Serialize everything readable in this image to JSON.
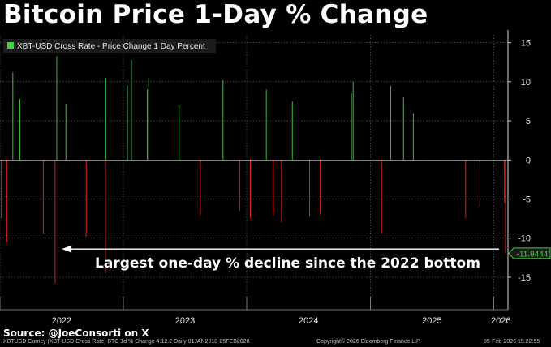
{
  "header": {
    "title": "Bitcoin Price 1-Day % Change"
  },
  "chart_data": {
    "type": "bar",
    "legend": "XBT-USD Cross Rate - Price Change 1 Day Percent",
    "legend_position": "top-left",
    "ylim": [
      -17.5,
      16
    ],
    "yticks": [
      15,
      10,
      5,
      0,
      -5,
      -10,
      -15
    ],
    "x_range": [
      "2022-01-01",
      "2026-02-05"
    ],
    "x_ticks": [
      {
        "label": "2022",
        "date": "2022-01-01"
      },
      {
        "label": "2023",
        "date": "2023-01-01"
      },
      {
        "label": "2024",
        "date": "2024-01-01"
      },
      {
        "label": "2025",
        "date": "2025-01-01"
      },
      {
        "label": "2026",
        "date": "2026-01-01"
      }
    ],
    "positive_color": "#3fd23f",
    "negative_color": "#ff1f1f",
    "grid": true,
    "last_value_label": "-11.9444",
    "last_value": -11.9444,
    "annotation": "Largest one-day % decline since the 2022 bottom",
    "series": [
      {
        "values": [
          {
            "date": "2022-01-05",
            "value": -7.5
          },
          {
            "date": "2022-01-21",
            "value": -10.5
          },
          {
            "date": "2022-02-08",
            "value": 11.2
          },
          {
            "date": "2022-03-01",
            "value": 7.8
          },
          {
            "date": "2022-05-09",
            "value": -9.5
          },
          {
            "date": "2022-06-13",
            "value": -15.8
          },
          {
            "date": "2022-06-18",
            "value": 13.3
          },
          {
            "date": "2022-07-15",
            "value": 7.2
          },
          {
            "date": "2022-09-13",
            "value": -9.8
          },
          {
            "date": "2022-11-09",
            "value": -14.5
          },
          {
            "date": "2022-11-10",
            "value": 10.5
          },
          {
            "date": "2023-01-13",
            "value": 9.5
          },
          {
            "date": "2023-01-25",
            "value": 12.8
          },
          {
            "date": "2023-03-13",
            "value": 9.0
          },
          {
            "date": "2023-03-17",
            "value": 10.5
          },
          {
            "date": "2023-06-15",
            "value": 7.0
          },
          {
            "date": "2023-08-17",
            "value": -7.0
          },
          {
            "date": "2023-10-23",
            "value": 10.2
          },
          {
            "date": "2023-12-11",
            "value": -6.5
          },
          {
            "date": "2024-01-12",
            "value": -7.5
          },
          {
            "date": "2024-02-28",
            "value": 9.0
          },
          {
            "date": "2024-03-19",
            "value": -7.0
          },
          {
            "date": "2024-04-13",
            "value": -8.0
          },
          {
            "date": "2024-05-15",
            "value": 7.5
          },
          {
            "date": "2024-07-05",
            "value": -7.2
          },
          {
            "date": "2024-08-05",
            "value": -7.0
          },
          {
            "date": "2024-11-06",
            "value": 8.5
          },
          {
            "date": "2024-11-11",
            "value": 10.0
          },
          {
            "date": "2025-02-03",
            "value": -9.5
          },
          {
            "date": "2025-03-02",
            "value": 9.5
          },
          {
            "date": "2025-04-09",
            "value": 8.0
          },
          {
            "date": "2025-05-08",
            "value": 6.0
          },
          {
            "date": "2025-10-10",
            "value": -7.5
          },
          {
            "date": "2025-11-21",
            "value": -6.0
          },
          {
            "date": "2026-02-02",
            "value": -5.5
          },
          {
            "date": "2026-02-05",
            "value": -11.9444
          }
        ]
      }
    ]
  },
  "source": "Source: @JoeConsorti on X",
  "footer": {
    "left": "XBTUSD Curncy (XBT-USD Cross Rate) BTC 1d % Change 4.12.2 Daily 01JAN2010-05FEB2026",
    "center": "Copyright© 2026 Bloomberg Finance L.P.",
    "right": "05-Feb-2026 15:22:55"
  }
}
